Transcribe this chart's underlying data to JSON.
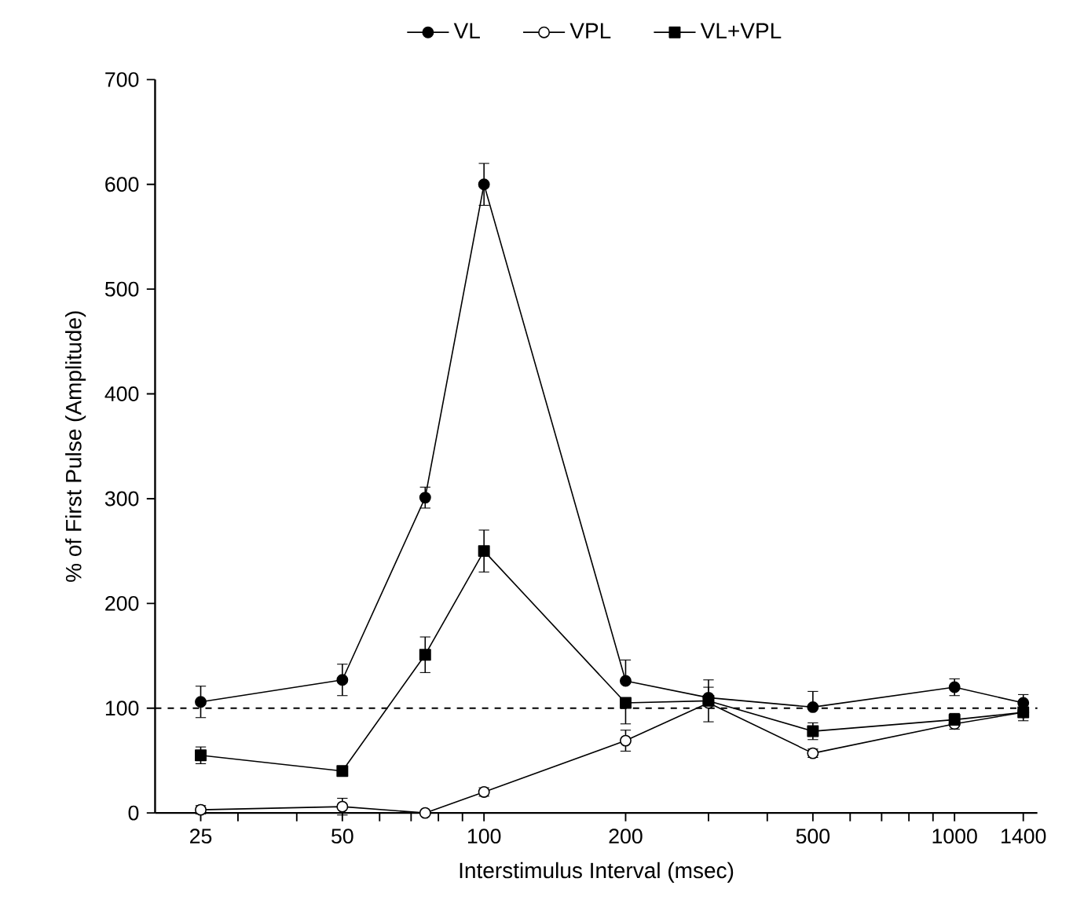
{
  "chart_data": {
    "type": "line",
    "xlabel": "Interstimulus Interval (msec)",
    "ylabel": "% of First Pulse (Amplitude)",
    "log": "x",
    "x": [
      25,
      50,
      75,
      100,
      200,
      300,
      500,
      1000,
      1400
    ],
    "xlim": [
      20,
      1500
    ],
    "xticks": [
      25,
      50,
      100,
      200,
      500,
      1000,
      1400,
      {
        "value": 30,
        "label": null
      },
      {
        "value": 40,
        "label": null
      },
      {
        "value": 60,
        "label": null
      },
      {
        "value": 70,
        "label": null
      },
      {
        "value": 80,
        "label": null
      },
      {
        "value": 90,
        "label": null
      },
      {
        "value": 300,
        "label": null
      },
      {
        "value": 400,
        "label": null
      },
      {
        "value": 600,
        "label": null
      },
      {
        "value": 700,
        "label": null
      },
      {
        "value": 800,
        "label": null
      },
      {
        "value": 900,
        "label": null
      }
    ],
    "ylim": [
      0,
      700
    ],
    "yticks": [
      0,
      100,
      200,
      300,
      400,
      500,
      600,
      700
    ],
    "legend": "top",
    "grid": false,
    "line_style": "solid",
    "series": [
      {
        "name": "VL",
        "color": "#000000",
        "marker": "circle",
        "values": [
          106,
          127,
          301,
          600,
          126,
          110,
          101,
          120,
          105
        ],
        "errors": [
          15,
          15,
          10,
          20,
          [
            126,
            146
          ],
          [
            110,
            120
          ],
          [
            101,
            116
          ],
          8,
          [
            105,
            113
          ]
        ]
      },
      {
        "name": "VPL",
        "color": "#000000",
        "marker": "circle",
        "colors": [
          "#ffffff",
          "#ffffff",
          "#ffffff",
          "#ffffff",
          "#ffffff",
          "#ffffff",
          "#ffffff",
          "#ffffff",
          "#ffffff"
        ],
        "values": [
          3,
          6,
          0,
          20,
          69,
          105,
          57,
          85,
          96
        ],
        "errors": [
          4,
          8,
          null,
          4,
          10,
          null,
          4,
          [
            80,
            85
          ],
          null
        ]
      },
      {
        "name": "VL+VPL",
        "color": "#000000",
        "marker": "square",
        "values": [
          55,
          40,
          151,
          250,
          105,
          107,
          78,
          89,
          96
        ],
        "errors": [
          8,
          4,
          17,
          20,
          [
            85,
            105
          ],
          [
            87,
            127
          ],
          [
            70,
            86
          ],
          [
            89,
            95
          ],
          [
            88,
            96
          ]
        ]
      }
    ],
    "ref_lines": [
      {
        "axis": "y",
        "value": 100,
        "line_style": "dashed",
        "color": "#000000"
      }
    ]
  }
}
